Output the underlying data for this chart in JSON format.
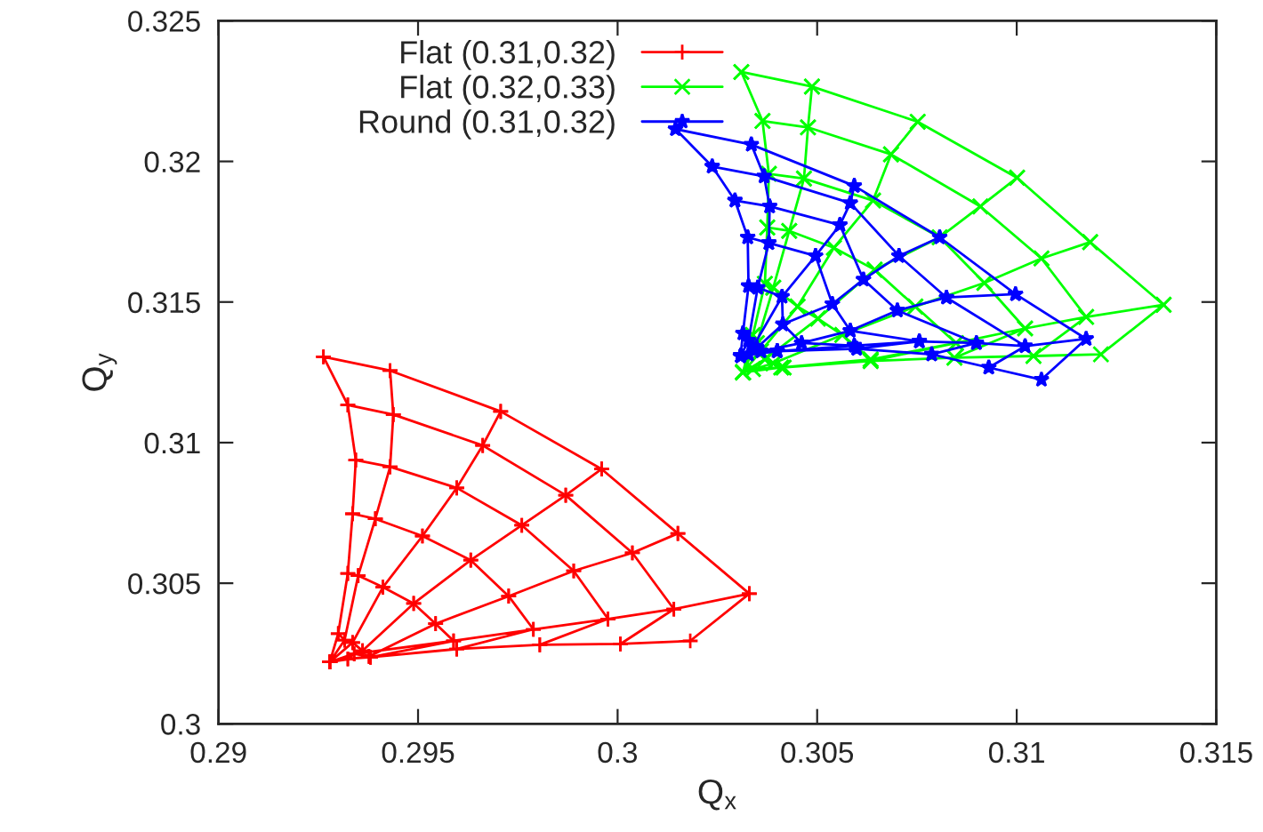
{
  "chart_data": {
    "type": "line",
    "xlabel": "Q$_{x}$",
    "ylabel": "Q$_{y}$",
    "xlim": [
      0.29,
      0.315
    ],
    "ylim": [
      0.3,
      0.325
    ],
    "xticks": [
      0.29,
      0.295,
      0.3,
      0.305,
      0.31,
      0.315
    ],
    "yticks": [
      0.3,
      0.305,
      0.31,
      0.315,
      0.32,
      0.325
    ],
    "grid": false,
    "legend": "top left",
    "line_style": "solid",
    "series": [
      {
        "name": "Flat (0.31,0.32)",
        "color": "#ff0000",
        "marker": "cross",
        "x": [
          0.29279,
          0.293,
          0.29324,
          0.29336,
          0.29344,
          0.29324,
          0.29263,
          0.2943,
          0.29438,
          0.2943,
          0.29393,
          0.2935,
          0.29316,
          0.29279,
          0.29279,
          0.29336,
          0.29412,
          0.29511,
          0.29597,
          0.29662,
          0.29707,
          0.2996,
          0.2987,
          0.2976,
          0.29632,
          0.29489,
          0.29361,
          0.29279,
          0.29279,
          0.29377,
          0.29544,
          0.29727,
          0.2989,
          0.30037,
          0.30151,
          0.3033,
          0.30141,
          0.29976,
          0.29789,
          0.29589,
          0.2934,
          0.29279,
          0.29279,
          0.29324,
          0.29381,
          0.29597,
          0.29805,
          0.30007,
          0.30182,
          0.3033,
          0.30151,
          0.2996,
          0.29707,
          0.2943,
          0.29263,
          0.29324,
          0.29438,
          0.29662,
          0.2987,
          0.30037,
          0.30141,
          0.30007,
          0.29805,
          0.29976,
          0.2989,
          0.2976,
          0.29597,
          0.2943,
          0.29344,
          0.29336,
          0.29393,
          0.29511,
          0.29632,
          0.29727,
          0.29789,
          0.29597,
          0.29381,
          0.29589,
          0.29544,
          0.29489,
          0.29412,
          0.2935,
          0.29324,
          0.293,
          0.29316,
          0.29336,
          0.29361,
          0.29377,
          0.2934,
          0.29324
        ],
        "values": [
          0.3022,
          0.30321,
          0.30535,
          0.30747,
          0.30938,
          0.31134,
          0.31305,
          0.31256,
          0.311,
          0.30914,
          0.30729,
          0.30527,
          0.30298,
          0.3022,
          0.3022,
          0.30289,
          0.30486,
          0.30668,
          0.30839,
          0.3099,
          0.31111,
          0.30906,
          0.30813,
          0.30706,
          0.30582,
          0.30428,
          0.3026,
          0.3022,
          0.3022,
          0.3024,
          0.30356,
          0.30454,
          0.30544,
          0.30608,
          0.30677,
          0.30463,
          0.30408,
          0.30373,
          0.30336,
          0.30295,
          0.30249,
          0.3022,
          0.3022,
          0.30231,
          0.30237,
          0.30266,
          0.30281,
          0.30284,
          0.30295,
          0.30463,
          0.30677,
          0.30906,
          0.31111,
          0.31256,
          0.31305,
          0.31134,
          0.311,
          0.3099,
          0.30813,
          0.30608,
          0.30408,
          0.30284,
          0.30281,
          0.30373,
          0.30544,
          0.30706,
          0.30839,
          0.30914,
          0.30938,
          0.30747,
          0.30729,
          0.30668,
          0.30582,
          0.30454,
          0.30336,
          0.30266,
          0.30237,
          0.30295,
          0.30356,
          0.30428,
          0.30486,
          0.30527,
          0.30535,
          0.30321,
          0.30298,
          0.30289,
          0.3026,
          0.3024,
          0.30249,
          0.30231
        ]
      },
      {
        "name": "Flat (0.32,0.33)",
        "color": "#00ff00",
        "marker": "x",
        "x": [
          0.30314,
          0.30339,
          0.30369,
          0.30375,
          0.30379,
          0.30363,
          0.3031,
          0.30487,
          0.30477,
          0.30467,
          0.3043,
          0.3039,
          0.30349,
          0.30314,
          0.30314,
          0.30359,
          0.30451,
          0.30542,
          0.3064,
          0.30685,
          0.30752,
          0.31001,
          0.30909,
          0.30807,
          0.30644,
          0.30502,
          0.30369,
          0.30314,
          0.30314,
          0.3039,
          0.30563,
          0.30746,
          0.30919,
          0.31062,
          0.31184,
          0.31368,
          0.31174,
          0.31021,
          0.30848,
          0.30634,
          0.3041,
          0.30314,
          0.30314,
          0.30339,
          0.30416,
          0.30634,
          0.30844,
          0.31042,
          0.31211,
          0.31368,
          0.31184,
          0.31001,
          0.30752,
          0.30487,
          0.3031,
          0.30363,
          0.30477,
          0.30685,
          0.30909,
          0.31062,
          0.31174,
          0.31042,
          0.30844,
          0.31021,
          0.30919,
          0.30807,
          0.3064,
          0.30467,
          0.30379,
          0.30375,
          0.3043,
          0.30542,
          0.30644,
          0.30746,
          0.30848,
          0.30634,
          0.30416,
          0.30634,
          0.30563,
          0.30502,
          0.30451,
          0.3039,
          0.30369,
          0.30339,
          0.30349,
          0.30359,
          0.30369,
          0.3039,
          0.3041,
          0.30339
        ],
        "values": [
          0.3125,
          0.31383,
          0.31565,
          0.31765,
          0.31956,
          0.32144,
          0.32318,
          0.32266,
          0.32121,
          0.31939,
          0.31753,
          0.31551,
          0.31354,
          0.3125,
          0.3125,
          0.31325,
          0.31484,
          0.31693,
          0.31861,
          0.32025,
          0.32141,
          0.31942,
          0.3184,
          0.3173,
          0.31615,
          0.31441,
          0.31296,
          0.3125,
          0.3125,
          0.31282,
          0.31383,
          0.31484,
          0.31568,
          0.31655,
          0.31713,
          0.3149,
          0.31447,
          0.31406,
          0.31354,
          0.31296,
          0.31267,
          0.3125,
          0.3125,
          0.31262,
          0.31267,
          0.3129,
          0.31302,
          0.31308,
          0.31314,
          0.3149,
          0.31713,
          0.31942,
          0.32141,
          0.32266,
          0.32318,
          0.32144,
          0.32121,
          0.32025,
          0.3184,
          0.31655,
          0.31447,
          0.31308,
          0.31302,
          0.31406,
          0.31568,
          0.3173,
          0.31861,
          0.31939,
          0.31956,
          0.31765,
          0.31753,
          0.31693,
          0.31615,
          0.31484,
          0.31354,
          0.3129,
          0.31267,
          0.31296,
          0.31383,
          0.31441,
          0.31484,
          0.31551,
          0.31565,
          0.31383,
          0.31354,
          0.31325,
          0.31296,
          0.31282,
          0.31267,
          0.31262
        ]
      },
      {
        "name": "Round (0.31,0.32)",
        "color": "#0000ff",
        "marker": "star",
        "x": [
          0.30308,
          0.30314,
          0.30328,
          0.30326,
          0.30294,
          0.30237,
          0.30145,
          0.30335,
          0.30367,
          0.30381,
          0.30379,
          0.30351,
          0.30328,
          0.30308,
          0.30308,
          0.30339,
          0.30412,
          0.30496,
          0.30557,
          0.30583,
          0.30593,
          0.30807,
          0.30705,
          0.30616,
          0.30538,
          0.30414,
          0.30349,
          0.30308,
          0.30308,
          0.30359,
          0.30461,
          0.30583,
          0.30701,
          0.30824,
          0.30997,
          0.31174,
          0.31021,
          0.30899,
          0.30756,
          0.30593,
          0.304,
          0.30308,
          0.30308,
          0.30328,
          0.304,
          0.30599,
          0.30787,
          0.3093,
          0.31062,
          0.31174,
          0.30997,
          0.30807,
          0.30593,
          0.30335,
          0.30145,
          0.30237,
          0.30367,
          0.30583,
          0.30705,
          0.30824,
          0.31021,
          0.3093,
          0.30787,
          0.30899,
          0.30701,
          0.30616,
          0.30557,
          0.30381,
          0.30294,
          0.30326,
          0.30379,
          0.30496,
          0.30538,
          0.30583,
          0.30756,
          0.30599,
          0.304,
          0.30593,
          0.30461,
          0.30414,
          0.30412,
          0.30351,
          0.30328,
          0.30314,
          0.30328,
          0.30339,
          0.30349,
          0.30359,
          0.304,
          0.30328
        ],
        "values": [
          0.31308,
          0.31389,
          0.31557,
          0.3173,
          0.31861,
          0.31982,
          0.32115,
          0.3206,
          0.31947,
          0.3184,
          0.3171,
          0.31551,
          0.31363,
          0.31308,
          0.31308,
          0.3134,
          0.31519,
          0.31664,
          0.31774,
          0.31852,
          0.31913,
          0.3173,
          0.31664,
          0.3158,
          0.31493,
          0.31421,
          0.31337,
          0.31308,
          0.31308,
          0.31325,
          0.31354,
          0.31398,
          0.3147,
          0.31516,
          0.31528,
          0.31369,
          0.31343,
          0.31354,
          0.3136,
          0.31345,
          0.31325,
          0.31308,
          0.31308,
          0.31314,
          0.31325,
          0.31334,
          0.31314,
          0.31267,
          0.31224,
          0.31369,
          0.31528,
          0.3173,
          0.31913,
          0.3206,
          0.32115,
          0.31982,
          0.31947,
          0.31852,
          0.31664,
          0.31516,
          0.31343,
          0.31267,
          0.31314,
          0.31354,
          0.3147,
          0.3158,
          0.31774,
          0.3184,
          0.31861,
          0.3173,
          0.3171,
          0.31664,
          0.31493,
          0.31398,
          0.3136,
          0.31334,
          0.31325,
          0.31345,
          0.31354,
          0.31421,
          0.31519,
          0.31551,
          0.31557,
          0.31389,
          0.31363,
          0.3134,
          0.31337,
          0.31325,
          0.31325,
          0.31314
        ]
      }
    ]
  }
}
